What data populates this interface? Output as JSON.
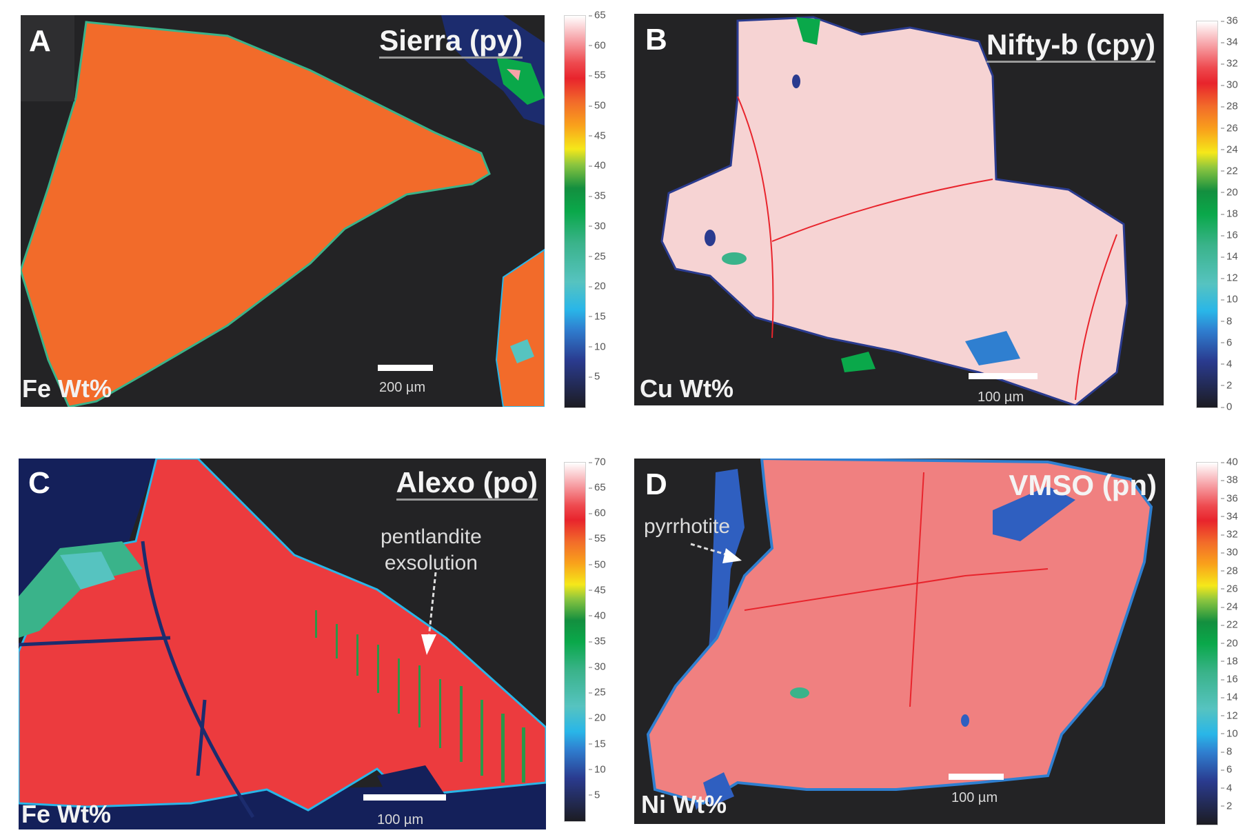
{
  "figure": {
    "panels": [
      {
        "letter": "A",
        "title": "Sierra (py)",
        "element_label": "Fe Wt%",
        "scale_bar": "200 µm",
        "mineral_color": "#f26b2a",
        "colorbar": {
          "min": 0,
          "max": 65,
          "ticks": [
            "65",
            "60",
            "55",
            "50",
            "45",
            "40",
            "35",
            "30",
            "25",
            "20",
            "15",
            "10",
            "5"
          ]
        }
      },
      {
        "letter": "B",
        "title": "Nifty-b (cpy)",
        "element_label": "Cu Wt%",
        "scale_bar": "100 µm",
        "mineral_color": "#f6d3d3",
        "colorbar": {
          "min": 0,
          "max": 36,
          "ticks": [
            "36",
            "34",
            "32",
            "30",
            "28",
            "26",
            "24",
            "22",
            "20",
            "18",
            "16",
            "14",
            "12",
            "10",
            "8",
            "6",
            "4",
            "2",
            "0"
          ]
        }
      },
      {
        "letter": "C",
        "title": "Alexo (po)",
        "element_label": "Fe Wt%",
        "scale_bar": "100 µm",
        "annotation": [
          "pentlandite",
          "exsolution"
        ],
        "mineral_color": "#ec3b3e",
        "colorbar": {
          "min": 0,
          "max": 70,
          "ticks": [
            "70",
            "65",
            "60",
            "55",
            "50",
            "45",
            "40",
            "35",
            "30",
            "25",
            "20",
            "15",
            "10",
            "5"
          ]
        }
      },
      {
        "letter": "D",
        "title": "VMSO (pn)",
        "element_label": "Ni Wt%",
        "scale_bar": "100 µm",
        "annotation": [
          "pyrrhotite"
        ],
        "mineral_color": "#f08080",
        "colorbar": {
          "min": 0,
          "max": 40,
          "ticks": [
            "40",
            "38",
            "36",
            "34",
            "32",
            "30",
            "28",
            "26",
            "24",
            "22",
            "20",
            "18",
            "16",
            "14",
            "12",
            "10",
            "8",
            "6",
            "4",
            "2"
          ]
        }
      }
    ]
  }
}
